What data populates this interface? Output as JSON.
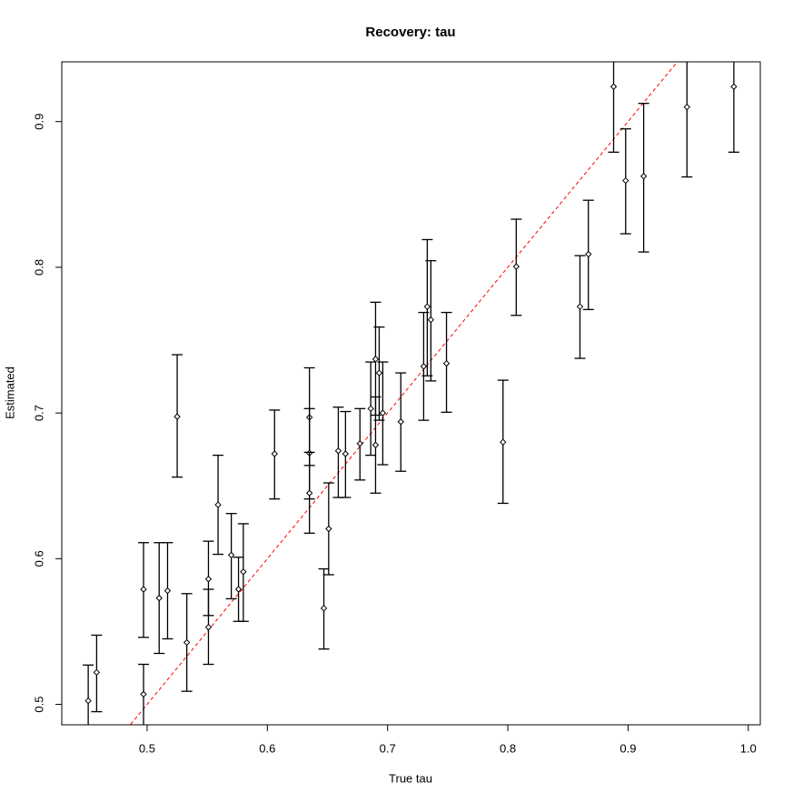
{
  "chart_data": {
    "type": "scatter",
    "title": "Recovery: tau",
    "xlabel": "True tau",
    "ylabel": "Estimated",
    "x": [
      0.451,
      0.458,
      0.497,
      0.497,
      0.51,
      0.517,
      0.525,
      0.533,
      0.551,
      0.551,
      0.559,
      0.57,
      0.576,
      0.58,
      0.606,
      0.635,
      0.635,
      0.635,
      0.647,
      0.651,
      0.659,
      0.665,
      0.677,
      0.686,
      0.69,
      0.69,
      0.693,
      0.696,
      0.711,
      0.73,
      0.733,
      0.736,
      0.749,
      0.796,
      0.807,
      0.86,
      0.867,
      0.888,
      0.898,
      0.913,
      0.949,
      0.988
    ],
    "values": [
      0.5025,
      0.522,
      0.507,
      0.579,
      0.573,
      0.578,
      0.6975,
      0.5425,
      0.586,
      0.553,
      0.637,
      0.6025,
      0.579,
      0.591,
      0.672,
      0.697,
      0.6725,
      0.645,
      0.566,
      0.6205,
      0.674,
      0.672,
      0.679,
      0.703,
      0.737,
      0.678,
      0.7275,
      0.7,
      0.694,
      0.732,
      0.773,
      0.764,
      0.734,
      0.68,
      0.8005,
      0.773,
      0.809,
      0.924,
      0.8595,
      0.8625,
      0.91,
      0.924
    ],
    "lower": [
      0.478,
      0.495,
      0.485,
      0.546,
      0.535,
      0.545,
      0.656,
      0.509,
      0.561,
      0.5275,
      0.603,
      0.5725,
      0.557,
      0.557,
      0.641,
      0.664,
      0.641,
      0.6175,
      0.538,
      0.589,
      0.642,
      0.642,
      0.654,
      0.671,
      0.6985,
      0.645,
      0.695,
      0.6645,
      0.66,
      0.695,
      0.7255,
      0.722,
      0.7005,
      0.638,
      0.767,
      0.7375,
      0.771,
      0.879,
      0.823,
      0.8105,
      0.862,
      0.879
    ],
    "upper": [
      0.527,
      0.5475,
      0.5275,
      0.611,
      0.611,
      0.611,
      0.74,
      0.576,
      0.612,
      0.579,
      0.671,
      0.631,
      0.601,
      0.624,
      0.702,
      0.731,
      0.703,
      0.673,
      0.593,
      0.652,
      0.704,
      0.701,
      0.703,
      0.735,
      0.776,
      0.711,
      0.759,
      0.735,
      0.7275,
      0.769,
      0.819,
      0.8045,
      0.769,
      0.7225,
      0.833,
      0.808,
      0.846,
      0.96,
      0.895,
      0.9125,
      0.95,
      0.965
    ],
    "color": "#000000",
    "reference_line": {
      "intercept": 0,
      "slope": 1,
      "color": "#ff0000"
    },
    "xlim": [
      0.429,
      1.01
    ],
    "ylim": [
      0.486,
      0.941
    ],
    "xticks": [
      0.5,
      0.6,
      0.7,
      0.8,
      0.9,
      {
        "value": 1,
        "label": "1.0"
      }
    ],
    "yticks": [
      0.5,
      0.6,
      0.7,
      0.8,
      0.9
    ]
  }
}
